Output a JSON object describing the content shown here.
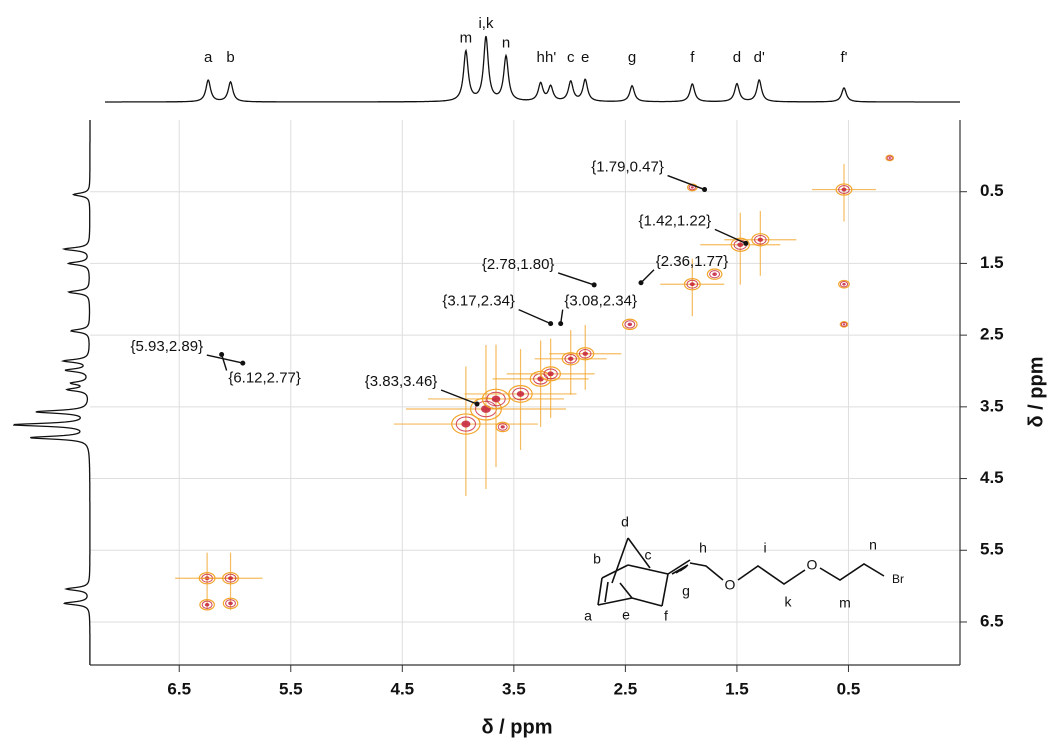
{
  "chart_data": {
    "type": "nmr-2d",
    "xlabel": "δ / ppm",
    "ylabel": "δ / ppm",
    "xlim": [
      7.3,
      -0.5
    ],
    "ylim": [
      -0.5,
      7.1
    ],
    "xticks": [
      6.5,
      5.5,
      4.5,
      3.5,
      2.5,
      1.5,
      0.5
    ],
    "yticks": [
      0.5,
      1.5,
      2.5,
      3.5,
      4.5,
      5.5,
      6.5
    ],
    "grid": true,
    "color": "#f2a52a",
    "contour_color": "#c41e3a",
    "peaks": {
      "x": [
        3.93,
        3.75,
        3.66,
        3.44,
        3.26,
        3.17,
        2.99,
        2.86,
        2.46,
        1.9,
        1.7,
        1.47,
        1.29,
        0.54,
        3.6,
        1.9,
        0.54,
        0.54,
        0.13,
        6.25,
        6.25,
        6.04,
        6.04
      ],
      "y": [
        3.74,
        3.53,
        3.39,
        3.32,
        3.11,
        3.04,
        2.83,
        2.76,
        2.35,
        1.79,
        1.65,
        1.24,
        1.17,
        0.47,
        3.78,
        0.44,
        1.79,
        2.35,
        0.03,
        5.89,
        6.26,
        5.89,
        6.24
      ],
      "intensity": [
        90,
        100,
        85,
        70,
        60,
        55,
        45,
        45,
        35,
        40,
        35,
        50,
        45,
        40,
        30,
        15,
        20,
        8,
        8,
        40,
        35,
        40,
        35
      ]
    },
    "projection": {
      "labels": [
        "a",
        "b",
        "m",
        "i,k",
        "n",
        "h",
        "h'",
        "c",
        "e",
        "g",
        "f",
        "d",
        "d'",
        "f'"
      ],
      "x": [
        6.24,
        6.04,
        3.93,
        3.75,
        3.57,
        3.26,
        3.17,
        2.99,
        2.86,
        2.44,
        1.9,
        1.5,
        1.3,
        0.54
      ],
      "heights": [
        34,
        31,
        78,
        100,
        70,
        28,
        23,
        31,
        34,
        25,
        28,
        28,
        34,
        22
      ]
    },
    "annotations": [
      {
        "x": 1.79,
        "y": 0.47,
        "label": "{1.79,0.47}"
      },
      {
        "x": 1.42,
        "y": 1.22,
        "label": "{1.42,1.22}"
      },
      {
        "x": 2.78,
        "y": 1.8,
        "label": "{2.78,1.80}"
      },
      {
        "x": 2.36,
        "y": 1.77,
        "label": "{2.36,1.77}"
      },
      {
        "x": 3.17,
        "y": 2.34,
        "label": "{3.17,2.34}"
      },
      {
        "x": 3.08,
        "y": 2.34,
        "label": "{3.08,2.34}"
      },
      {
        "x": 5.93,
        "y": 2.89,
        "label": "{5.93,2.89}"
      },
      {
        "x": 6.12,
        "y": 2.77,
        "label": "{6.12,2.77}"
      },
      {
        "x": 3.83,
        "y": 3.46,
        "label": "{3.83,3.46}"
      }
    ]
  },
  "structure": {
    "labels": [
      "d",
      "b",
      "c",
      "h",
      "i",
      "n",
      "O",
      "O",
      "Br",
      "g",
      "a",
      "e",
      "f",
      "k",
      "m"
    ]
  }
}
